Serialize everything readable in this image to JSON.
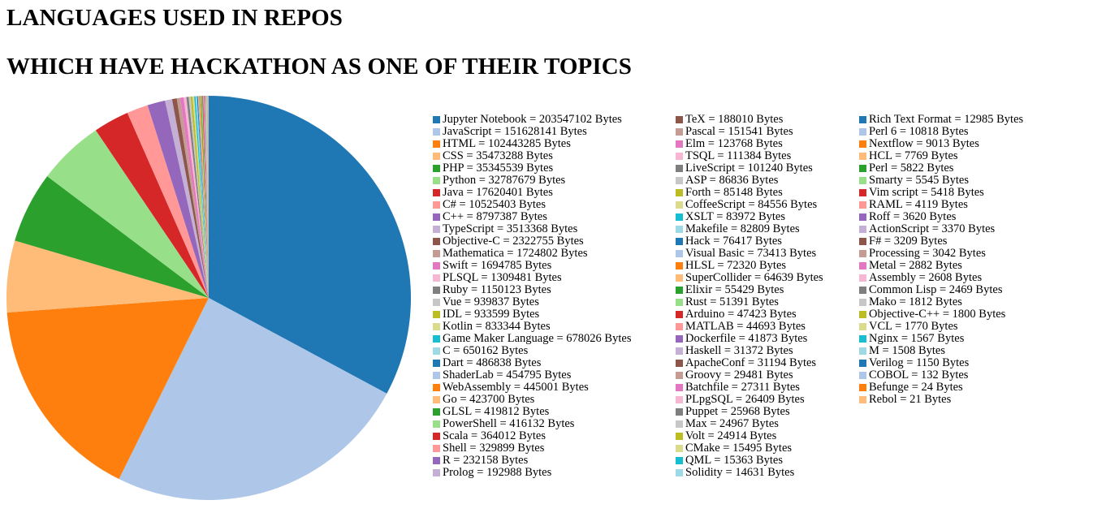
{
  "page": {
    "title_line1": "LANGUAGES USED IN REPOS",
    "title_line2": "WHICH HAVE HACKATHON AS ONE OF THEIR TOPICS"
  },
  "chart_data": {
    "type": "pie",
    "unit": "Bytes",
    "legend_position": "right",
    "palette": [
      "#1f77b4",
      "#aec7e8",
      "#ff7f0e",
      "#ffbb78",
      "#2ca02c",
      "#98df8a",
      "#d62728",
      "#ff9896",
      "#9467bd",
      "#c5b0d5",
      "#8c564b",
      "#c49c94",
      "#e377c2",
      "#f7b6d2",
      "#7f7f7f",
      "#c7c7c7",
      "#bcbd22",
      "#dbdb8d",
      "#17becf",
      "#9edae5"
    ],
    "slices": [
      {
        "label": "Jupyter Notebook",
        "value": 203547102
      },
      {
        "label": "JavaScript",
        "value": 151628141
      },
      {
        "label": "HTML",
        "value": 102443285
      },
      {
        "label": "CSS",
        "value": 35473288
      },
      {
        "label": "PHP",
        "value": 35345539
      },
      {
        "label": "Python",
        "value": 32787679
      },
      {
        "label": "Java",
        "value": 17620401
      },
      {
        "label": "C#",
        "value": 10525403
      },
      {
        "label": "C++",
        "value": 8797387
      },
      {
        "label": "TypeScript",
        "value": 3513368
      },
      {
        "label": "Objective-C",
        "value": 2322755
      },
      {
        "label": "Mathematica",
        "value": 1724802
      },
      {
        "label": "Swift",
        "value": 1694785
      },
      {
        "label": "PLSQL",
        "value": 1309481
      },
      {
        "label": "Ruby",
        "value": 1150123
      },
      {
        "label": "Vue",
        "value": 939837
      },
      {
        "label": "IDL",
        "value": 933599
      },
      {
        "label": "Kotlin",
        "value": 833344
      },
      {
        "label": "Game Maker Language",
        "value": 678026
      },
      {
        "label": "C",
        "value": 650162
      },
      {
        "label": "Dart",
        "value": 486838
      },
      {
        "label": "ShaderLab",
        "value": 454795
      },
      {
        "label": "WebAssembly",
        "value": 445001
      },
      {
        "label": "Go",
        "value": 423700
      },
      {
        "label": "GLSL",
        "value": 419812
      },
      {
        "label": "PowerShell",
        "value": 416132
      },
      {
        "label": "Scala",
        "value": 364012
      },
      {
        "label": "Shell",
        "value": 329899
      },
      {
        "label": "R",
        "value": 232158
      },
      {
        "label": "Prolog",
        "value": 192988
      },
      {
        "label": "TeX",
        "value": 188010
      },
      {
        "label": "Pascal",
        "value": 151541
      },
      {
        "label": "Elm",
        "value": 123768
      },
      {
        "label": "TSQL",
        "value": 111384
      },
      {
        "label": "LiveScript",
        "value": 101240
      },
      {
        "label": "ASP",
        "value": 86836
      },
      {
        "label": "Forth",
        "value": 85148
      },
      {
        "label": "CoffeeScript",
        "value": 84556
      },
      {
        "label": "XSLT",
        "value": 83972
      },
      {
        "label": "Makefile",
        "value": 82809
      },
      {
        "label": "Hack",
        "value": 76417
      },
      {
        "label": "Visual Basic",
        "value": 73413
      },
      {
        "label": "HLSL",
        "value": 72320
      },
      {
        "label": "SuperCollider",
        "value": 64639
      },
      {
        "label": "Elixir",
        "value": 55429
      },
      {
        "label": "Rust",
        "value": 51391
      },
      {
        "label": "Arduino",
        "value": 47423
      },
      {
        "label": "MATLAB",
        "value": 44693
      },
      {
        "label": "Dockerfile",
        "value": 41873
      },
      {
        "label": "Haskell",
        "value": 31372
      },
      {
        "label": "ApacheConf",
        "value": 31194
      },
      {
        "label": "Groovy",
        "value": 29481
      },
      {
        "label": "Batchfile",
        "value": 27311
      },
      {
        "label": "PLpgSQL",
        "value": 26409
      },
      {
        "label": "Puppet",
        "value": 25968
      },
      {
        "label": "Max",
        "value": 24967
      },
      {
        "label": "Volt",
        "value": 24914
      },
      {
        "label": "CMake",
        "value": 15495
      },
      {
        "label": "QML",
        "value": 15363
      },
      {
        "label": "Solidity",
        "value": 14631
      },
      {
        "label": "Rich Text Format",
        "value": 12985
      },
      {
        "label": "Perl 6",
        "value": 10818
      },
      {
        "label": "Nextflow",
        "value": 9013
      },
      {
        "label": "HCL",
        "value": 7769
      },
      {
        "label": "Perl",
        "value": 5822
      },
      {
        "label": "Smarty",
        "value": 5545
      },
      {
        "label": "Vim script",
        "value": 5418
      },
      {
        "label": "RAML",
        "value": 4119
      },
      {
        "label": "Roff",
        "value": 3620
      },
      {
        "label": "ActionScript",
        "value": 3370
      },
      {
        "label": "F#",
        "value": 3209
      },
      {
        "label": "Processing",
        "value": 3042
      },
      {
        "label": "Metal",
        "value": 2882
      },
      {
        "label": "Assembly",
        "value": 2608
      },
      {
        "label": "Common Lisp",
        "value": 2469
      },
      {
        "label": "Mako",
        "value": 1812
      },
      {
        "label": "Objective-C++",
        "value": 1800
      },
      {
        "label": "VCL",
        "value": 1770
      },
      {
        "label": "Nginx",
        "value": 1567
      },
      {
        "label": "M",
        "value": 1508
      },
      {
        "label": "Verilog",
        "value": 1150
      },
      {
        "label": "COBOL",
        "value": 132
      },
      {
        "label": "Befunge",
        "value": 24
      },
      {
        "label": "Rebol",
        "value": 21
      }
    ]
  }
}
